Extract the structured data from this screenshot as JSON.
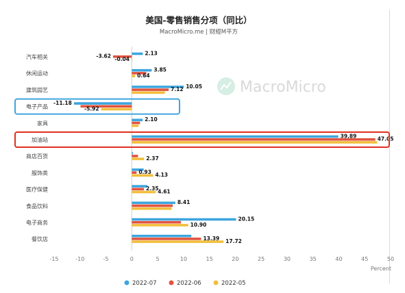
{
  "chart_data": {
    "type": "bar",
    "orientation": "horizontal",
    "title": "美国-零售销售分项（同比）",
    "subtitle": "MacroMicro.me | 财經M平方",
    "xlabel": "Percent",
    "xlim": [
      -15,
      50
    ],
    "xticks": [
      -15,
      -10,
      -5,
      0,
      5,
      10,
      15,
      20,
      25,
      30,
      35,
      40,
      45,
      50
    ],
    "grid": false,
    "legend_position": "bottom",
    "watermark": "MacroMicro",
    "categories": [
      "汽车相关",
      "休闲运动",
      "建筑园艺",
      "电子产品",
      "家具",
      "加油站",
      "商店百货",
      "服饰类",
      "医疗保健",
      "食品饮料",
      "电子商务",
      "餐饮店"
    ],
    "series": [
      {
        "name": "2022-07",
        "color": "#3DA5DE",
        "values": [
          2.13,
          3.85,
          10.05,
          -11.18,
          2.1,
          39.89,
          0.2,
          2.3,
          3.0,
          8.41,
          20.15,
          11.5
        ]
      },
      {
        "name": "2022-06",
        "color": "#E2533E",
        "values": [
          -3.62,
          2.8,
          7.12,
          -9.9,
          1.6,
          47.05,
          1.2,
          0.93,
          2.35,
          7.9,
          9.5,
          13.39
        ]
      },
      {
        "name": "2022-05",
        "color": "#F2BE3C",
        "values": [
          -0.04,
          0.64,
          6.4,
          -5.92,
          1.3,
          47.4,
          2.37,
          4.13,
          4.61,
          7.7,
          10.9,
          17.72
        ]
      }
    ],
    "data_labels": [
      {
        "category_index": 0,
        "series_index": 0,
        "text": "2.13"
      },
      {
        "category_index": 0,
        "series_index": 1,
        "text": "-3.62"
      },
      {
        "category_index": 0,
        "series_index": 2,
        "text": "-0.04"
      },
      {
        "category_index": 1,
        "series_index": 0,
        "text": "3.85"
      },
      {
        "category_index": 1,
        "series_index": 2,
        "text": "0.64"
      },
      {
        "category_index": 2,
        "series_index": 0,
        "text": "10.05"
      },
      {
        "category_index": 2,
        "series_index": 1,
        "text": "7.12"
      },
      {
        "category_index": 3,
        "series_index": 0,
        "text": "-11.18"
      },
      {
        "category_index": 3,
        "series_index": 2,
        "text": "-5.92"
      },
      {
        "category_index": 4,
        "series_index": 0,
        "text": "2.10"
      },
      {
        "category_index": 5,
        "series_index": 0,
        "text": "39.89"
      },
      {
        "category_index": 5,
        "series_index": 1,
        "text": "47.05"
      },
      {
        "category_index": 6,
        "series_index": 2,
        "text": "2.37"
      },
      {
        "category_index": 7,
        "series_index": 1,
        "text": "0.93"
      },
      {
        "category_index": 7,
        "series_index": 2,
        "text": "4.13"
      },
      {
        "category_index": 8,
        "series_index": 1,
        "text": "2.35"
      },
      {
        "category_index": 8,
        "series_index": 2,
        "text": "4.61"
      },
      {
        "category_index": 9,
        "series_index": 0,
        "text": "8.41"
      },
      {
        "category_index": 10,
        "series_index": 0,
        "text": "20.15"
      },
      {
        "category_index": 10,
        "series_index": 2,
        "text": "10.90"
      },
      {
        "category_index": 11,
        "series_index": 1,
        "text": "13.39"
      },
      {
        "category_index": 11,
        "series_index": 2,
        "text": "17.72"
      }
    ],
    "highlights": [
      {
        "category": "电子产品",
        "color": "#3DA5DE"
      },
      {
        "category": "加油站",
        "color": "#E0301E"
      }
    ]
  }
}
